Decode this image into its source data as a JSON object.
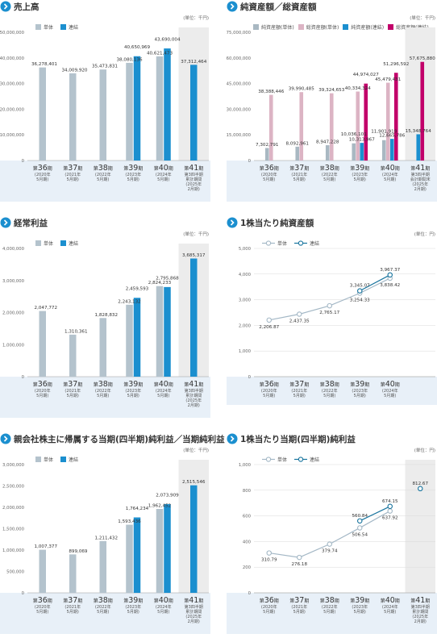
{
  "colors": {
    "single": "#b4c3cd",
    "cons": "#1b8fcf",
    "single_nav": "#a9b8c2",
    "total_single": "#dcb4c4",
    "total_cons": "#c2006a",
    "line_single": "#a4b8c6",
    "line_cons": "#18749e",
    "band": "#e8f0f8",
    "highlight": "#ececec",
    "grid": "#d9d9d9"
  },
  "common": {
    "unit": "(単位：千円)",
    "periods": [
      {
        "label": "第",
        "num": "36",
        "suffix": "期",
        "sub1": "(2020年",
        "sub2": "5月期)",
        "sub3": ""
      },
      {
        "label": "第",
        "num": "37",
        "suffix": "期",
        "sub1": "(2021年",
        "sub2": "5月期)",
        "sub3": ""
      },
      {
        "label": "第",
        "num": "38",
        "suffix": "期",
        "sub1": "(2022年",
        "sub2": "5月期)",
        "sub3": ""
      },
      {
        "label": "第",
        "num": "39",
        "suffix": "期",
        "sub1": "(2023年",
        "sub2": "5月期)",
        "sub3": ""
      },
      {
        "label": "第",
        "num": "40",
        "suffix": "期",
        "sub1": "(2024年",
        "sub2": "5月期)",
        "sub3": ""
      }
    ]
  },
  "charts": [
    {
      "id": "sales",
      "title": "売上高",
      "unit": "(単位：千円)",
      "type": "bar",
      "legend": [
        {
          "name": "単体",
          "color": "single"
        },
        {
          "name": "連結",
          "color": "cons"
        }
      ],
      "yticks": [
        "50,000,000",
        "40,000,000",
        "30,000,000",
        "20,000,000",
        "10,000,000",
        "0"
      ],
      "ymax": 50000000,
      "last_period": {
        "label": "第",
        "num": "41",
        "suffix": "期",
        "sub1": "第3四半期",
        "sub2": "累計期間",
        "sub3": "(2025年",
        "sub4": "2月期)"
      },
      "series": [
        {
          "name": "単体",
          "values": [
            36278401,
            34009920,
            35473831,
            38080136,
            40621473,
            null
          ],
          "labels": [
            "36,278,401",
            "34,009,920",
            "35,473,831",
            "38,080,136",
            "40,621,473",
            ""
          ]
        },
        {
          "name": "連結",
          "values": [
            null,
            null,
            null,
            40650969,
            43690004,
            37312464
          ],
          "labels": [
            "",
            "",
            "",
            "40,650,969",
            "43,690,004",
            "37,312,464"
          ]
        }
      ]
    },
    {
      "id": "netassets",
      "title": "純資産額／総資産額",
      "unit": "(単位：千円)",
      "type": "bar4",
      "legend": [
        {
          "name": "純資産額(単体)",
          "color": "single_nav"
        },
        {
          "name": "総資産額(単体)",
          "color": "total_single"
        },
        {
          "name": "純資産額(連結)",
          "color": "cons"
        },
        {
          "name": "総資産額(連結)",
          "color": "total_cons"
        }
      ],
      "yticks": [
        "75,000,000",
        "60,000,000",
        "45,000,000",
        "30,000,000",
        "15,000,000",
        "0"
      ],
      "ymax": 75000000,
      "last_period": {
        "label": "第",
        "num": "41",
        "suffix": "期",
        "sub1": "第3四半期",
        "sub2": "会計期間末",
        "sub3": "(2025年",
        "sub4": "2月期)"
      },
      "series": [
        {
          "name": "純資産額(単体)",
          "values": [
            7302791,
            8092961,
            8947228,
            10036101,
            11901919,
            null
          ],
          "labels": [
            "7,302,791",
            "8,092,961",
            "8,947,228",
            "10,036,101",
            "11,901,919",
            ""
          ]
        },
        {
          "name": "総資産額(単体)",
          "values": [
            38388446,
            39990485,
            39324653,
            40334324,
            45479431,
            null
          ],
          "labels": [
            "38,388,446",
            "39,990,485",
            "39,324,653",
            "40,334,324",
            "45,479,431",
            ""
          ]
        },
        {
          "name": "純資産額(連結)",
          "values": [
            null,
            null,
            null,
            10313967,
            12665786,
            15348764
          ],
          "labels": [
            "",
            "",
            "",
            "10,313,967",
            "12,665,786",
            "15,348,764"
          ]
        },
        {
          "name": "総資産額(連結)",
          "values": [
            null,
            null,
            null,
            44974027,
            51296592,
            57675880
          ],
          "labels": [
            "",
            "",
            "",
            "44,974,027",
            "51,296,592",
            "57,675,880"
          ]
        }
      ]
    },
    {
      "id": "ordinary",
      "title": "経常利益",
      "unit": "(単位：千円)",
      "type": "bar",
      "legend": [
        {
          "name": "単体",
          "color": "single"
        },
        {
          "name": "連結",
          "color": "cons"
        }
      ],
      "yticks": [
        "4,000,000",
        "3,000,000",
        "2,000,000",
        "1,000,000",
        "0"
      ],
      "ymax": 4000000,
      "last_period": {
        "label": "第",
        "num": "41",
        "suffix": "期",
        "sub1": "第3四半期",
        "sub2": "累計期間",
        "sub3": "(2025年",
        "sub4": "2月期)"
      },
      "series": [
        {
          "name": "単体",
          "values": [
            2047772,
            1310361,
            1828832,
            2243132,
            2824233,
            null
          ],
          "labels": [
            "2,047,772",
            "1,310,361",
            "1,828,832",
            "2,243,132",
            "2,824,233",
            ""
          ]
        },
        {
          "name": "連結",
          "values": [
            null,
            null,
            null,
            2459593,
            2795868,
            3685317
          ],
          "labels": [
            "",
            "",
            "",
            "2,459,593",
            "2,795,868",
            "3,685,317"
          ]
        }
      ]
    },
    {
      "id": "bps",
      "title": "1株当たり純資産額",
      "unit": "(単位：円)",
      "type": "line",
      "legend": [
        {
          "name": "単体",
          "color": "line_single"
        },
        {
          "name": "連結",
          "color": "line_cons"
        }
      ],
      "yticks": [
        "5,000",
        "4,000",
        "3,000",
        "2,000",
        "1,000",
        "0"
      ],
      "ymax": 5000,
      "last_period": null,
      "series": [
        {
          "name": "単体",
          "values": [
            2206.87,
            2437.35,
            2765.17,
            3254.33,
            3838.42
          ],
          "labels": [
            "2,206.87",
            "2,437.35",
            "2,765.17",
            "3,254.33",
            "3,838.42"
          ]
        },
        {
          "name": "連結",
          "values": [
            null,
            null,
            null,
            3345.07,
            3967.37
          ],
          "labels": [
            "",
            "",
            "",
            "3,345.07",
            "3,967.37"
          ]
        }
      ]
    },
    {
      "id": "netincome",
      "title": "親会社株主に帰属する当期(四半期)純利益／当期純利益",
      "unit": "(単位：千円)",
      "type": "bar",
      "legend": [
        {
          "name": "単体",
          "color": "single"
        },
        {
          "name": "連結",
          "color": "cons"
        }
      ],
      "yticks": [
        "3,000,000",
        "2,500,000",
        "2,000,000",
        "1,500,000",
        "1,000,000",
        "500,000",
        "0"
      ],
      "ymax": 3000000,
      "last_period": {
        "label": "第",
        "num": "41",
        "suffix": "期",
        "sub1": "第3四半期",
        "sub2": "累計期間",
        "sub3": "(2025年",
        "sub4": "2月期)"
      },
      "series": [
        {
          "name": "単体",
          "values": [
            1007377,
            899069,
            1211432,
            1593436,
            1962452,
            null
          ],
          "labels": [
            "1,007,377",
            "899,069",
            "1,211,432",
            "1,593,436",
            "1,962,452",
            ""
          ]
        },
        {
          "name": "連結",
          "values": [
            null,
            null,
            null,
            1764234,
            2073909,
            2515546
          ],
          "labels": [
            "",
            "",
            "",
            "1,764,234",
            "2,073,909",
            "2,515,546"
          ]
        }
      ]
    },
    {
      "id": "eps",
      "title": "1株当たり当期(四半期)純利益",
      "unit": "(単位：円)",
      "type": "line",
      "legend": [
        {
          "name": "単体",
          "color": "line_single"
        },
        {
          "name": "連結",
          "color": "line_cons"
        }
      ],
      "yticks": [
        "1,000",
        "800",
        "600",
        "400",
        "200",
        "0"
      ],
      "ymax": 1000,
      "last_period": {
        "label": "第",
        "num": "41",
        "suffix": "期",
        "sub1": "第3四半期",
        "sub2": "累計期間",
        "sub3": "(2025年",
        "sub4": "2月期)"
      },
      "series": [
        {
          "name": "単体",
          "values": [
            310.79,
            276.18,
            379.74,
            506.54,
            637.92,
            null
          ],
          "labels": [
            "310.79",
            "276.18",
            "379.74",
            "506.54",
            "637.92",
            ""
          ]
        },
        {
          "name": "連結",
          "values": [
            null,
            null,
            null,
            560.84,
            674.15,
            812.67
          ],
          "labels": [
            "",
            "",
            "",
            "560.84",
            "674.15",
            "812.67"
          ]
        }
      ]
    }
  ],
  "chart_data": [
    {
      "type": "bar",
      "title": "売上高",
      "categories": [
        "第36期",
        "第37期",
        "第38期",
        "第39期",
        "第40期",
        "第41期 第3四半期累計期間"
      ],
      "series": [
        {
          "name": "単体",
          "values": [
            36278401,
            34009920,
            35473831,
            38080136,
            40621473,
            null
          ]
        },
        {
          "name": "連結",
          "values": [
            null,
            null,
            null,
            40650969,
            43690004,
            37312464
          ]
        }
      ],
      "ylim": [
        0,
        50000000
      ],
      "ylabel": "(単位：千円)"
    },
    {
      "type": "bar",
      "title": "純資産額／総資産額",
      "categories": [
        "第36期",
        "第37期",
        "第38期",
        "第39期",
        "第40期",
        "第41期 第3四半期会計期間末"
      ],
      "series": [
        {
          "name": "純資産額(単体)",
          "values": [
            7302791,
            8092961,
            8947228,
            10036101,
            11901919,
            null
          ]
        },
        {
          "name": "総資産額(単体)",
          "values": [
            38388446,
            39990485,
            39324653,
            40334324,
            45479431,
            null
          ]
        },
        {
          "name": "純資産額(連結)",
          "values": [
            null,
            null,
            null,
            10313967,
            12665786,
            15348764
          ]
        },
        {
          "name": "総資産額(連結)",
          "values": [
            null,
            null,
            null,
            44974027,
            51296592,
            57675880
          ]
        }
      ],
      "ylim": [
        0,
        75000000
      ],
      "ylabel": "(単位：千円)"
    },
    {
      "type": "bar",
      "title": "経常利益",
      "categories": [
        "第36期",
        "第37期",
        "第38期",
        "第39期",
        "第40期",
        "第41期 第3四半期累計期間"
      ],
      "series": [
        {
          "name": "単体",
          "values": [
            2047772,
            1310361,
            1828832,
            2243132,
            2824233,
            null
          ]
        },
        {
          "name": "連結",
          "values": [
            null,
            null,
            null,
            2459593,
            2795868,
            3685317
          ]
        }
      ],
      "ylim": [
        0,
        4000000
      ],
      "ylabel": "(単位：千円)"
    },
    {
      "type": "line",
      "title": "1株当たり純資産額",
      "categories": [
        "第36期",
        "第37期",
        "第38期",
        "第39期",
        "第40期"
      ],
      "series": [
        {
          "name": "単体",
          "values": [
            2206.87,
            2437.35,
            2765.17,
            3254.33,
            3838.42
          ]
        },
        {
          "name": "連結",
          "values": [
            null,
            null,
            null,
            3345.07,
            3967.37
          ]
        }
      ],
      "ylim": [
        0,
        5000
      ],
      "ylabel": "(単位：円)"
    },
    {
      "type": "bar",
      "title": "親会社株主に帰属する当期(四半期)純利益／当期純利益",
      "categories": [
        "第36期",
        "第37期",
        "第38期",
        "第39期",
        "第40期",
        "第41期 第3四半期累計期間"
      ],
      "series": [
        {
          "name": "単体",
          "values": [
            1007377,
            899069,
            1211432,
            1593436,
            1962452,
            null
          ]
        },
        {
          "name": "連結",
          "values": [
            null,
            null,
            null,
            1764234,
            2073909,
            2515546
          ]
        }
      ],
      "ylim": [
        0,
        3000000
      ],
      "ylabel": "(単位：千円)"
    },
    {
      "type": "line",
      "title": "1株当たり当期(四半期)純利益",
      "categories": [
        "第36期",
        "第37期",
        "第38期",
        "第39期",
        "第40期",
        "第41期 第3四半期累計期間"
      ],
      "series": [
        {
          "name": "単体",
          "values": [
            310.79,
            276.18,
            379.74,
            506.54,
            637.92,
            null
          ]
        },
        {
          "name": "連結",
          "values": [
            null,
            null,
            null,
            560.84,
            674.15,
            812.67
          ]
        }
      ],
      "ylim": [
        0,
        1000
      ],
      "ylabel": "(単位：円)"
    }
  ]
}
